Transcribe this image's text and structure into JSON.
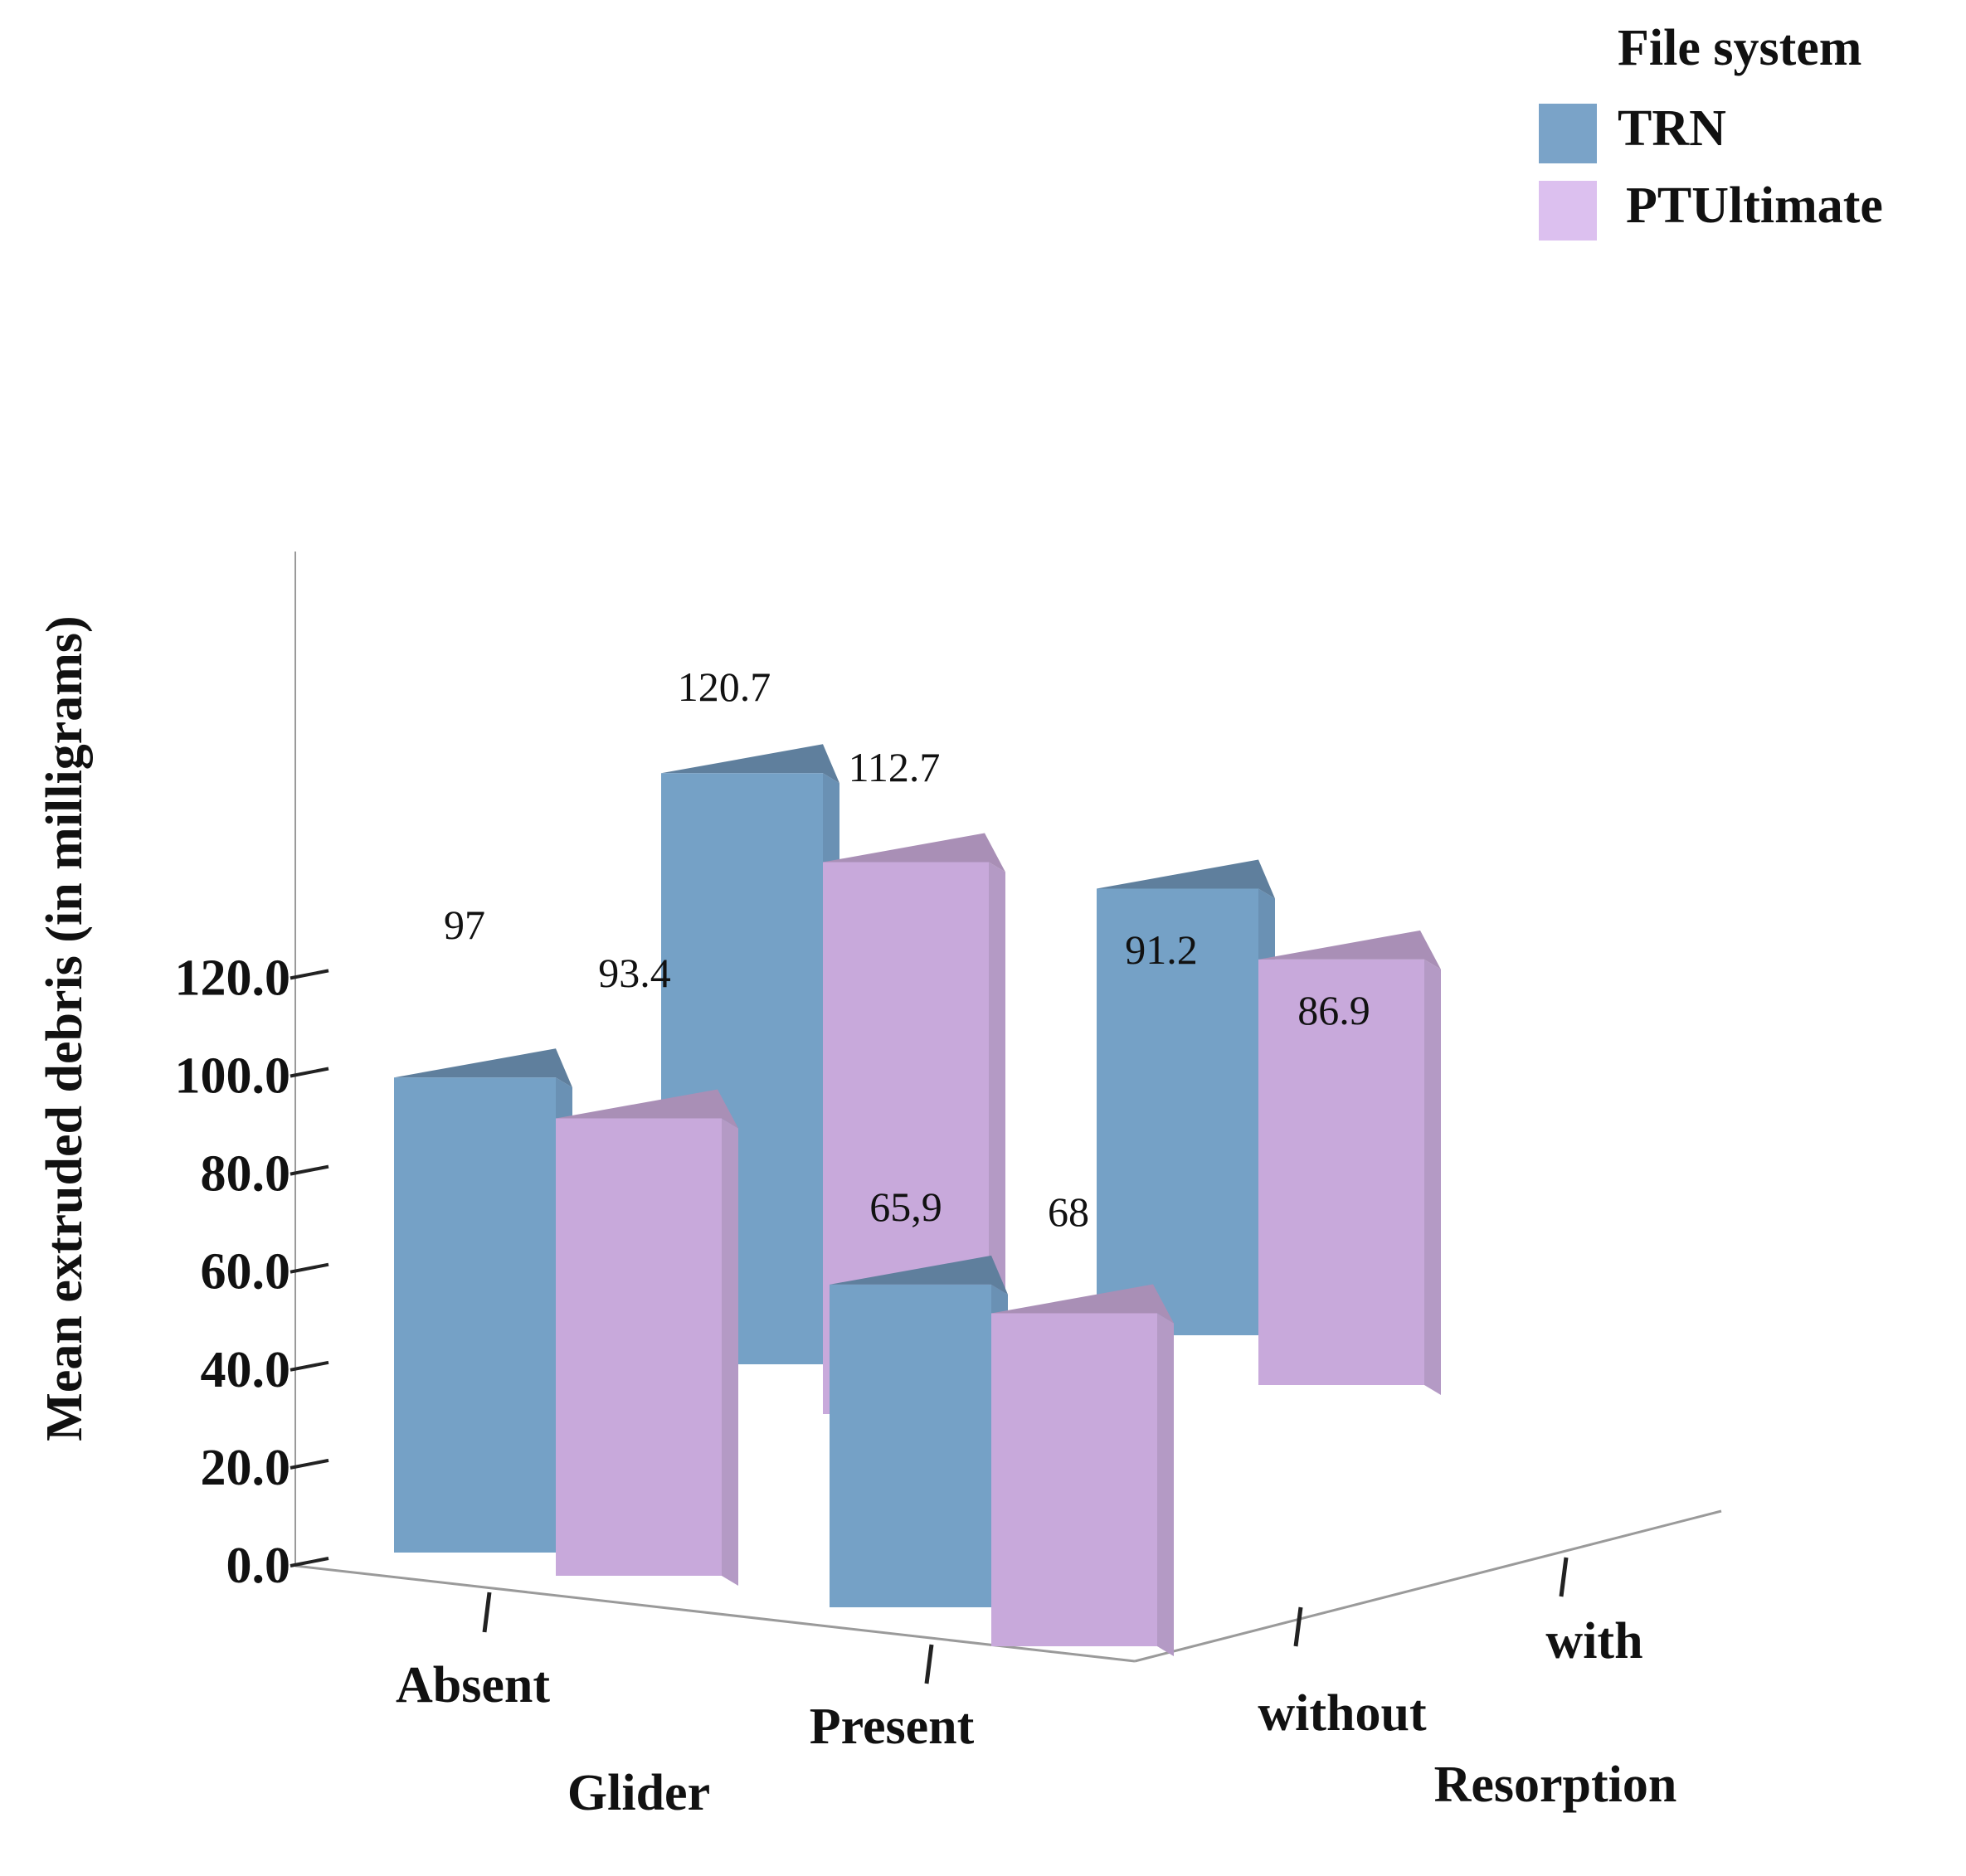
{
  "chart_data": {
    "type": "bar",
    "title": "",
    "ylabel": "Mean extruded debris (in milligrams)",
    "ylim": [
      0,
      140
    ],
    "yticks": [
      "0.0",
      "20.0",
      "40.0",
      "60.0",
      "80.0",
      "100.0",
      "120.0"
    ],
    "x_axis": {
      "label": "Glider",
      "categories": [
        "Absent",
        "Present"
      ]
    },
    "depth_axis": {
      "label": "Resorption",
      "categories": [
        "without",
        "with"
      ]
    },
    "legend": {
      "title": "File system",
      "position": "top-right"
    },
    "series": [
      {
        "name": "TRN",
        "color": "#7aa3c8"
      },
      {
        "name": "PTUltimate",
        "color": "#c9a8dc"
      }
    ],
    "bars": [
      {
        "glider": "Absent",
        "resorption": "without",
        "series": "TRN",
        "value": 97,
        "label": "97"
      },
      {
        "glider": "Absent",
        "resorption": "without",
        "series": "PTUltimate",
        "value": 93.4,
        "label": "93.4"
      },
      {
        "glider": "Absent",
        "resorption": "with",
        "series": "TRN",
        "value": 120.7,
        "label": "120.7"
      },
      {
        "glider": "Absent",
        "resorption": "with",
        "series": "PTUltimate",
        "value": 112.7,
        "label": "112.7"
      },
      {
        "glider": "Present",
        "resorption": "without",
        "series": "TRN",
        "value": 65.9,
        "label": "65,9"
      },
      {
        "glider": "Present",
        "resorption": "without",
        "series": "PTUltimate",
        "value": 68,
        "label": "68"
      },
      {
        "glider": "Present",
        "resorption": "with",
        "series": "TRN",
        "value": 91.2,
        "label": "91.2"
      },
      {
        "glider": "Present",
        "resorption": "with",
        "series": "PTUltimate",
        "value": 86.9,
        "label": "86.9"
      }
    ]
  }
}
